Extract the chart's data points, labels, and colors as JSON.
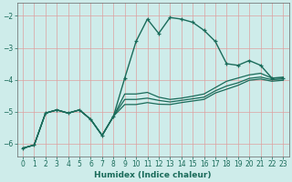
{
  "title": "",
  "xlabel": "Humidex (Indice chaleur)",
  "ylabel": "",
  "xlim": [
    -0.5,
    23.5
  ],
  "ylim": [
    -6.4,
    -1.6
  ],
  "yticks": [
    -6,
    -5,
    -4,
    -3,
    -2
  ],
  "xticks": [
    0,
    1,
    2,
    3,
    4,
    5,
    6,
    7,
    8,
    9,
    10,
    11,
    12,
    13,
    14,
    15,
    16,
    17,
    18,
    19,
    20,
    21,
    22,
    23
  ],
  "bg_color": "#ceecea",
  "grid_color": "#dda0a0",
  "line_color": "#1a6b5a",
  "lines": [
    {
      "y": [
        -6.15,
        -6.05,
        -5.05,
        -4.95,
        -5.05,
        -4.95,
        -5.25,
        -5.75,
        -5.15,
        -3.95,
        -2.8,
        -2.1,
        -2.55,
        -2.05,
        -2.1,
        -2.2,
        -2.45,
        -2.8,
        -3.5,
        -3.55,
        -3.4,
        -3.55,
        -3.95,
        -3.95
      ],
      "marker": true,
      "lw": 1.0
    },
    {
      "y": [
        -6.15,
        -6.05,
        -5.05,
        -4.95,
        -5.05,
        -4.95,
        -5.25,
        -5.75,
        -5.15,
        -4.45,
        -4.45,
        -4.4,
        -4.55,
        -4.62,
        -4.58,
        -4.52,
        -4.45,
        -4.25,
        -4.05,
        -3.95,
        -3.85,
        -3.8,
        -3.95,
        -3.92
      ],
      "marker": false,
      "lw": 0.9
    },
    {
      "y": [
        -6.15,
        -6.05,
        -5.05,
        -4.95,
        -5.05,
        -4.95,
        -5.25,
        -5.75,
        -5.15,
        -4.62,
        -4.62,
        -4.58,
        -4.65,
        -4.7,
        -4.65,
        -4.6,
        -4.55,
        -4.35,
        -4.2,
        -4.1,
        -3.96,
        -3.92,
        -4.0,
        -3.98
      ],
      "marker": false,
      "lw": 0.9
    },
    {
      "y": [
        -6.15,
        -6.05,
        -5.05,
        -4.95,
        -5.05,
        -4.95,
        -5.25,
        -5.75,
        -5.15,
        -4.78,
        -4.78,
        -4.72,
        -4.77,
        -4.78,
        -4.72,
        -4.67,
        -4.62,
        -4.42,
        -4.3,
        -4.18,
        -4.02,
        -3.98,
        -4.05,
        -4.02
      ],
      "marker": false,
      "lw": 0.9
    }
  ],
  "figsize": [
    3.2,
    2.0
  ],
  "dpi": 100
}
